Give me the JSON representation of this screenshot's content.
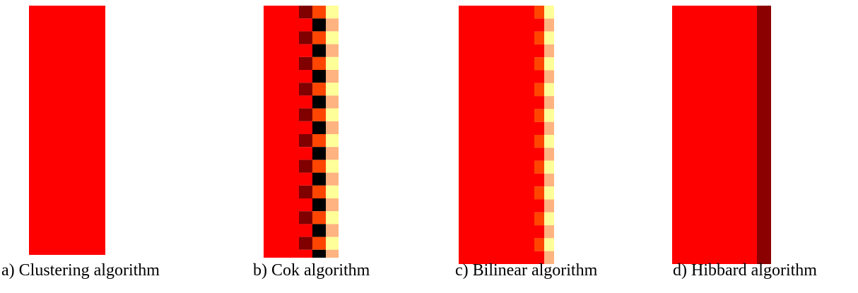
{
  "colors": {
    "red": "#ff0000",
    "dark_red": "#8b0000",
    "maroon": "#800000",
    "orange": "#ff4500",
    "black": "#000000",
    "pale_yellow": "#ffff99",
    "peach": "#ffb380",
    "background": "#ffffff"
  },
  "panels": [
    {
      "id": "a",
      "caption": "a) Clustering algorithm"
    },
    {
      "id": "b",
      "caption": "b) Cok algorithm"
    },
    {
      "id": "c",
      "caption": "c) Bilinear algorithm"
    },
    {
      "id": "d",
      "caption": "d) Hibbard algorithm"
    }
  ]
}
